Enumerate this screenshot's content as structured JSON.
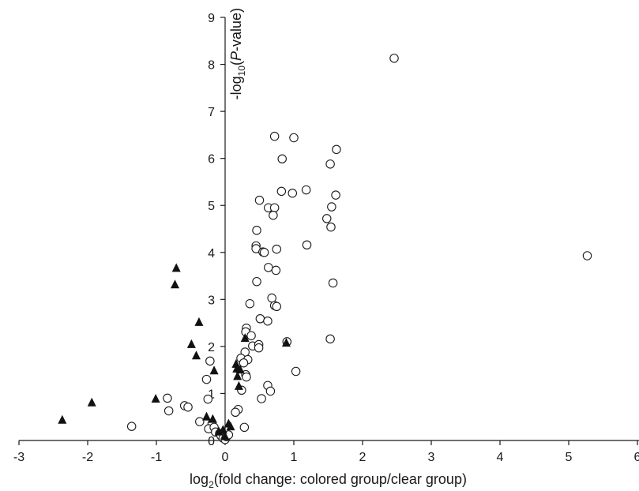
{
  "chart_data": {
    "type": "scatter",
    "title": "",
    "xlabel": {
      "base": "log",
      "sub": "2",
      "rest": "(fold change: colored group/clear group)"
    },
    "ylabel": {
      "pre": "-log",
      "sub": "10",
      "open": "(",
      "italic": "P",
      "close": "-value)"
    },
    "xlim": [
      -3,
      6
    ],
    "ylim": [
      0,
      9
    ],
    "xticks": [
      "-3",
      "-2",
      "-1",
      "0",
      "1",
      "2",
      "3",
      "4",
      "5",
      "6"
    ],
    "yticks": [
      "0",
      "1",
      "2",
      "3",
      "4",
      "5",
      "6",
      "7",
      "8",
      "9"
    ],
    "grid": false,
    "series": [
      {
        "marker": "circle",
        "color": "#1a1a1a",
        "points": [
          [
            2.46,
            8.13
          ],
          [
            5.27,
            3.93
          ],
          [
            0.72,
            6.47
          ],
          [
            1.0,
            6.44
          ],
          [
            1.62,
            6.19
          ],
          [
            0.83,
            5.99
          ],
          [
            1.53,
            5.88
          ],
          [
            0.82,
            5.3
          ],
          [
            0.98,
            5.26
          ],
          [
            1.18,
            5.33
          ],
          [
            1.61,
            5.22
          ],
          [
            0.5,
            5.11
          ],
          [
            0.63,
            4.95
          ],
          [
            0.72,
            4.95
          ],
          [
            0.7,
            4.79
          ],
          [
            1.55,
            4.97
          ],
          [
            1.48,
            4.72
          ],
          [
            1.54,
            4.54
          ],
          [
            0.46,
            4.47
          ],
          [
            0.45,
            4.14
          ],
          [
            0.45,
            4.08
          ],
          [
            0.55,
            4.01
          ],
          [
            0.57,
            4.0
          ],
          [
            0.75,
            4.07
          ],
          [
            1.19,
            4.16
          ],
          [
            0.63,
            3.68
          ],
          [
            0.74,
            3.62
          ],
          [
            0.46,
            3.38
          ],
          [
            1.57,
            3.35
          ],
          [
            0.68,
            3.03
          ],
          [
            0.36,
            2.91
          ],
          [
            0.72,
            2.87
          ],
          [
            0.75,
            2.85
          ],
          [
            0.51,
            2.59
          ],
          [
            0.62,
            2.54
          ],
          [
            0.31,
            2.39
          ],
          [
            0.3,
            2.31
          ],
          [
            0.38,
            2.23
          ],
          [
            0.9,
            2.1
          ],
          [
            0.4,
            2.01
          ],
          [
            0.49,
            2.04
          ],
          [
            0.49,
            1.97
          ],
          [
            1.53,
            2.16
          ],
          [
            0.29,
            1.88
          ],
          [
            0.23,
            1.75
          ],
          [
            0.33,
            1.72
          ],
          [
            0.27,
            1.65
          ],
          [
            -0.22,
            1.69
          ],
          [
            0.3,
            1.4
          ],
          [
            0.31,
            1.35
          ],
          [
            -0.27,
            1.3
          ],
          [
            0.62,
            1.17
          ],
          [
            0.66,
            1.05
          ],
          [
            1.03,
            1.47
          ],
          [
            0.24,
            1.07
          ],
          [
            0.53,
            0.89
          ],
          [
            -0.25,
            0.88
          ],
          [
            -0.84,
            0.9
          ],
          [
            -0.59,
            0.74
          ],
          [
            -0.54,
            0.71
          ],
          [
            -0.82,
            0.63
          ],
          [
            0.19,
            0.66
          ],
          [
            0.15,
            0.6
          ],
          [
            -0.37,
            0.4
          ],
          [
            -0.19,
            0.36
          ],
          [
            -0.24,
            0.25
          ],
          [
            -0.16,
            0.28
          ],
          [
            -0.14,
            0.18
          ],
          [
            -0.08,
            0.15
          ],
          [
            -0.06,
            0.1
          ],
          [
            -0.03,
            0.05
          ],
          [
            0.0,
            0.02
          ],
          [
            0.02,
            0.08
          ],
          [
            0.05,
            0.12
          ],
          [
            0.28,
            0.28
          ],
          [
            -1.36,
            0.3
          ]
        ]
      },
      {
        "marker": "triangle",
        "color": "#111111",
        "points": [
          [
            -0.71,
            3.66
          ],
          [
            -0.73,
            3.31
          ],
          [
            -0.38,
            2.51
          ],
          [
            -0.49,
            2.04
          ],
          [
            -0.42,
            1.8
          ],
          [
            -0.16,
            1.48
          ],
          [
            0.29,
            2.17
          ],
          [
            0.89,
            2.07
          ],
          [
            0.16,
            1.62
          ],
          [
            0.17,
            1.52
          ],
          [
            0.22,
            1.5
          ],
          [
            0.18,
            1.36
          ],
          [
            0.2,
            1.15
          ],
          [
            -1.01,
            0.88
          ],
          [
            -1.94,
            0.8
          ],
          [
            -2.37,
            0.43
          ],
          [
            -0.27,
            0.5
          ],
          [
            -0.18,
            0.45
          ],
          [
            -0.03,
            0.22
          ],
          [
            0.05,
            0.35
          ],
          [
            0.08,
            0.29
          ],
          [
            0.0,
            0.08
          ],
          [
            -0.09,
            0.18
          ]
        ]
      }
    ]
  }
}
